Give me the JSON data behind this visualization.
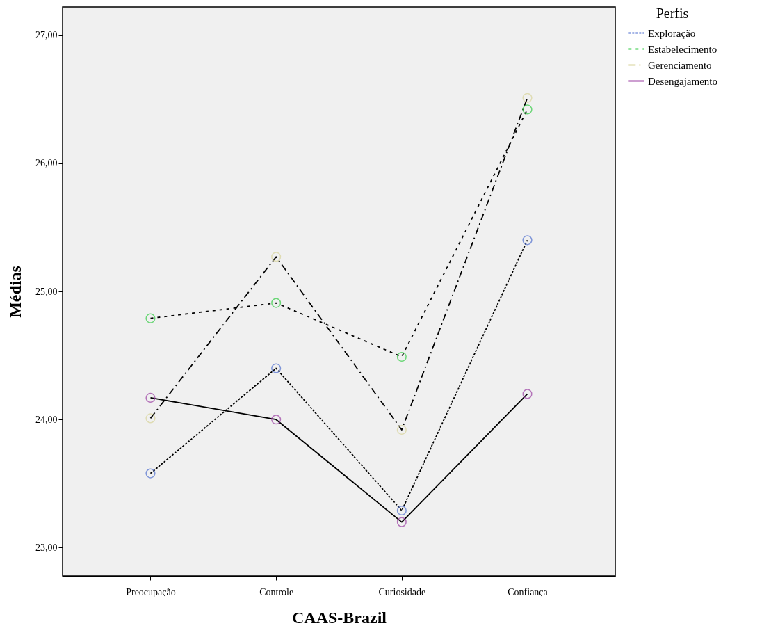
{
  "chart_data": {
    "type": "line",
    "xlabel": "CAAS-Brazil",
    "ylabel": "Médias",
    "legend_title": "Perfis",
    "categories": [
      "Preocupação",
      "Controle",
      "Curiosidade",
      "Confiança"
    ],
    "series": [
      {
        "name": "Exploração",
        "color": "#4f6fcf",
        "line_style": "dotted",
        "values": [
          23.58,
          24.4,
          23.29,
          25.4
        ]
      },
      {
        "name": "Estabelecimento",
        "color": "#33cc44",
        "line_style": "dashed",
        "values": [
          24.79,
          24.91,
          24.49,
          26.42
        ]
      },
      {
        "name": "Gerenciamento",
        "color": "#d8d49a",
        "line_style": "dashdot",
        "values": [
          24.01,
          25.27,
          23.92,
          26.51
        ]
      },
      {
        "name": "Desengajamento",
        "color": "#9b3fa3",
        "line_style": "solid",
        "values": [
          24.17,
          24.0,
          23.2,
          24.2
        ]
      }
    ],
    "ylim": [
      22.78,
      27.22
    ],
    "yticks": [
      {
        "value": 23,
        "label": "23,00"
      },
      {
        "value": 24,
        "label": "24,00"
      },
      {
        "value": 25,
        "label": "25,00"
      },
      {
        "value": 26,
        "label": "26,00"
      },
      {
        "value": 27,
        "label": "27,00"
      }
    ],
    "grid": false,
    "legend": "top right",
    "marker": "circle"
  }
}
